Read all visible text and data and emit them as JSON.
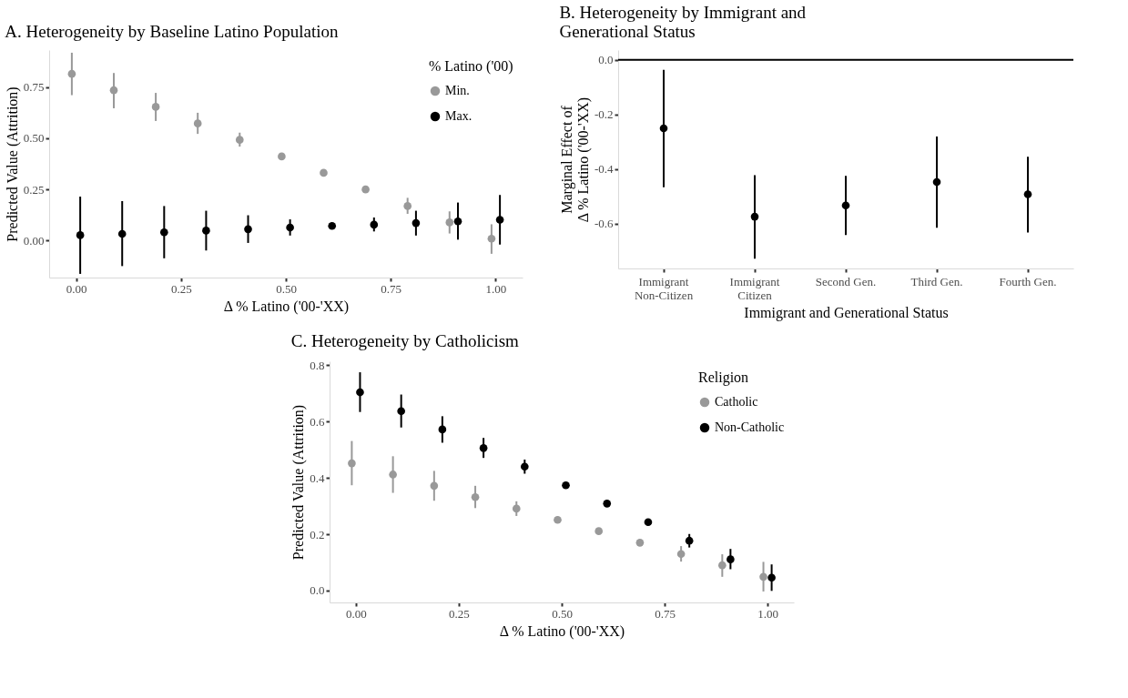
{
  "chart_data": [
    {
      "type": "scatter",
      "title": "A. Heterogeneity by Baseline Latino Population",
      "xlabel": "Δ % Latino ('00-'XX)",
      "ylabel": "Predicted Value (Attrition)",
      "legend_title": "% Latino ('00)",
      "legend": "top right",
      "grid": false,
      "marker": "circle",
      "xlim": [
        -0.064,
        1.064
      ],
      "xticks": [
        {
          "value": 0,
          "label": "0.00"
        },
        {
          "value": 0.25,
          "label": "0.25"
        },
        {
          "value": 0.5,
          "label": "0.50"
        },
        {
          "value": 0.75,
          "label": "0.75"
        },
        {
          "value": 1,
          "label": "1.00"
        }
      ],
      "ylim": [
        -0.18,
        0.93
      ],
      "yticks": [
        {
          "value": 0,
          "label": "0.00"
        },
        {
          "value": 0.25,
          "label": "0.25"
        },
        {
          "value": 0.5,
          "label": "0.50"
        },
        {
          "value": 0.75,
          "label": "0.75"
        }
      ],
      "series": [
        {
          "name": "Min.",
          "color": "#999999",
          "x": [
            -0.01,
            0.09,
            0.19,
            0.29,
            0.39,
            0.49,
            0.59,
            0.69,
            0.79,
            0.89,
            0.99
          ],
          "values": [
            0.814,
            0.734,
            0.653,
            0.572,
            0.492,
            0.411,
            0.331,
            0.25,
            0.169,
            0.089,
            0.01
          ],
          "errors": [
            [
              0.71,
              0.917
            ],
            [
              0.646,
              0.818
            ],
            [
              0.584,
              0.721
            ],
            [
              0.521,
              0.624
            ],
            [
              0.459,
              0.527
            ],
            null,
            null,
            null,
            [
              0.131,
              0.209
            ],
            [
              0.035,
              0.143
            ],
            [
              -0.064,
              0.08
            ]
          ]
        },
        {
          "name": "Max.",
          "color": "#000000",
          "x": [
            0.01,
            0.11,
            0.21,
            0.31,
            0.41,
            0.51,
            0.61,
            0.71,
            0.81,
            0.91,
            1.01
          ],
          "values": [
            0.027,
            0.033,
            0.041,
            0.049,
            0.056,
            0.064,
            0.072,
            0.078,
            0.086,
            0.094,
            0.102
          ],
          "errors": [
            [
              -0.162,
              0.215
            ],
            [
              -0.124,
              0.193
            ],
            [
              -0.086,
              0.169
            ],
            [
              -0.048,
              0.146
            ],
            [
              -0.011,
              0.124
            ],
            [
              0.025,
              0.104
            ],
            null,
            [
              0.045,
              0.113
            ],
            [
              0.025,
              0.146
            ],
            [
              0.005,
              0.186
            ],
            [
              -0.019,
              0.223
            ]
          ]
        }
      ]
    },
    {
      "type": "scatter",
      "title": "B. Heterogeneity by Immigrant and Generational Status",
      "xlabel": "Immigrant and Generational Status",
      "ylabel": "Marginal Effect of\nΔ % Latino ('00-'XX)",
      "legend": false,
      "grid": false,
      "marker": "circle",
      "categories": [
        "Immigrant Non-Citizen",
        "Immigrant Citizen",
        "Second Gen.",
        "Third Gen.",
        "Fourth Gen."
      ],
      "ylim": [
        -0.765,
        0.036
      ],
      "yticks": [
        {
          "value": -0.6,
          "label": "-0.6"
        },
        {
          "value": -0.4,
          "label": "-0.4"
        },
        {
          "value": -0.2,
          "label": "-0.2"
        },
        {
          "value": 0,
          "label": "0.0"
        }
      ],
      "ref_lines": [
        {
          "axis": "y",
          "value": 0,
          "color": "#000000"
        }
      ],
      "series": [
        {
          "color": "#000000",
          "values": [
            -0.251,
            -0.575,
            -0.534,
            -0.448,
            -0.493
          ],
          "errors": [
            [
              -0.467,
              -0.037
            ],
            [
              -0.729,
              -0.423
            ],
            [
              -0.642,
              -0.425
            ],
            [
              -0.616,
              -0.281
            ],
            [
              -0.633,
              -0.355
            ]
          ]
        }
      ]
    },
    {
      "type": "scatter",
      "title": "C. Heterogeneity by Catholicism",
      "xlabel": "Δ % Latino ('00-'XX)",
      "ylabel": "Predicted Value (Attrition)",
      "legend_title": "Religion",
      "legend": "top right",
      "grid": false,
      "marker": "circle",
      "xlim": [
        -0.064,
        1.064
      ],
      "xticks": [
        {
          "value": 0,
          "label": "0.00"
        },
        {
          "value": 0.25,
          "label": "0.25"
        },
        {
          "value": 0.5,
          "label": "0.50"
        },
        {
          "value": 0.75,
          "label": "0.75"
        },
        {
          "value": 1,
          "label": "1.00"
        }
      ],
      "ylim": [
        -0.042,
        0.814
      ],
      "yticks": [
        {
          "value": 0,
          "label": "0.0"
        },
        {
          "value": 0.2,
          "label": "0.2"
        },
        {
          "value": 0.4,
          "label": "0.4"
        },
        {
          "value": 0.6,
          "label": "0.6"
        },
        {
          "value": 0.8,
          "label": "0.8"
        }
      ],
      "series": [
        {
          "name": "Catholic",
          "color": "#999999",
          "x": [
            -0.01,
            0.09,
            0.19,
            0.29,
            0.39,
            0.49,
            0.59,
            0.69,
            0.79,
            0.89,
            0.99
          ],
          "values": [
            0.452,
            0.412,
            0.372,
            0.332,
            0.291,
            0.251,
            0.211,
            0.17,
            0.13,
            0.09,
            0.049
          ],
          "errors": [
            [
              0.374,
              0.531
            ],
            [
              0.347,
              0.477
            ],
            [
              0.319,
              0.425
            ],
            [
              0.293,
              0.372
            ],
            [
              0.265,
              0.317
            ],
            null,
            null,
            null,
            [
              0.103,
              0.158
            ],
            [
              0.049,
              0.129
            ],
            [
              -0.003,
              0.102
            ]
          ]
        },
        {
          "name": "Non-Catholic",
          "color": "#000000",
          "x": [
            0.01,
            0.11,
            0.21,
            0.31,
            0.41,
            0.51,
            0.61,
            0.71,
            0.81,
            0.91,
            1.01
          ],
          "values": [
            0.704,
            0.637,
            0.572,
            0.506,
            0.44,
            0.374,
            0.309,
            0.243,
            0.177,
            0.111,
            0.046
          ],
          "errors": [
            [
              0.634,
              0.775
            ],
            [
              0.579,
              0.696
            ],
            [
              0.525,
              0.619
            ],
            [
              0.471,
              0.542
            ],
            [
              0.415,
              0.465
            ],
            null,
            null,
            null,
            [
              0.153,
              0.201
            ],
            [
              0.076,
              0.148
            ],
            [
              -0.001,
              0.093
            ]
          ]
        }
      ]
    }
  ]
}
